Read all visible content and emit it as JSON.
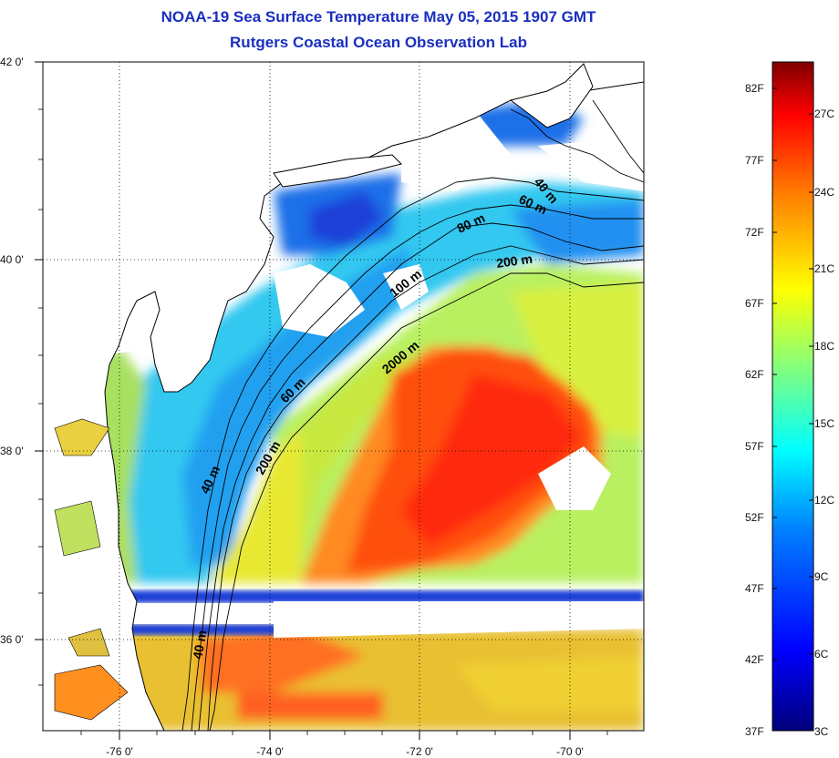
{
  "title": {
    "line1": "NOAA-19 Sea Surface Temperature May 05, 2015 1907 GMT",
    "line2": "Rutgers Coastal Ocean Observation Lab"
  },
  "axes": {
    "x_ticks": [
      "-76 0'",
      "-74 0'",
      "-72 0'",
      "-70 0'"
    ],
    "y_ticks": [
      "42 0'",
      "40 0'",
      "38 0'",
      "36 0'"
    ]
  },
  "contours": {
    "labels": [
      "40 m",
      "60 m",
      "80 m",
      "200 m",
      "100 m",
      "2000 m",
      "60 m",
      "40 m",
      "200 m",
      "40 m"
    ]
  },
  "colorbar": {
    "fahrenheit": [
      "82F",
      "77F",
      "72F",
      "67F",
      "62F",
      "57F",
      "52F",
      "47F",
      "42F",
      "37F"
    ],
    "celsius": [
      "27C",
      "24C",
      "21C",
      "18C",
      "15C",
      "12C",
      "9C",
      "6C",
      "3C"
    ],
    "colors": [
      "#800000",
      "#ff0000",
      "#ff8000",
      "#ffff00",
      "#80ff80",
      "#00ffff",
      "#0080ff",
      "#0000ff",
      "#000080"
    ]
  },
  "colors": {
    "title": "#1a2fc0",
    "land_and_clouds": "#ffffff",
    "warm_core": "#ff3010"
  }
}
